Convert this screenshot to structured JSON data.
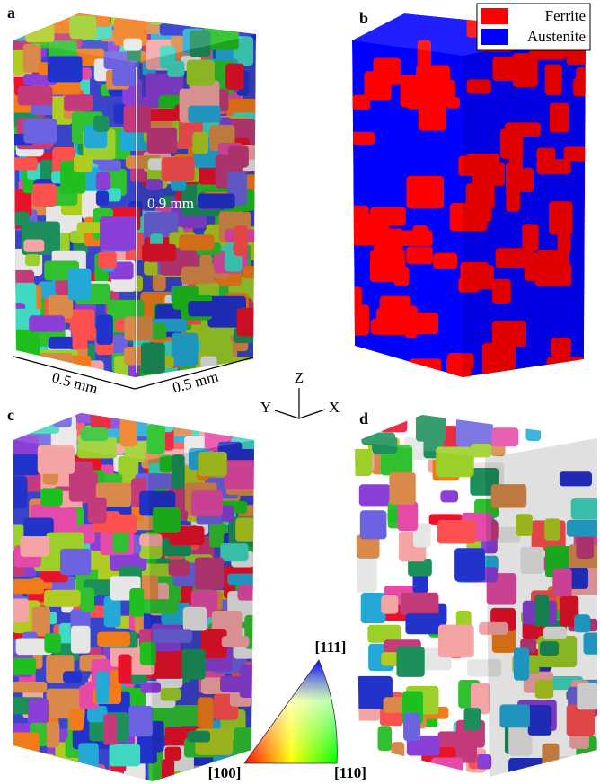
{
  "panels": [
    {
      "label": "a"
    },
    {
      "label": "b"
    },
    {
      "label": "c"
    },
    {
      "label": "d"
    }
  ],
  "legend": {
    "items": [
      {
        "name": "Ferrite",
        "color": "#ff0000"
      },
      {
        "name": "Austenite",
        "color": "#0000ff"
      }
    ]
  },
  "dimensions": {
    "height": "0.9 mm",
    "width_y": "0.5 mm",
    "width_x": "0.5 mm"
  },
  "axes": {
    "z": "Z",
    "y": "Y",
    "x": "X"
  },
  "color_key": {
    "top": "[111]",
    "left": "[100]",
    "right": "[110]"
  }
}
